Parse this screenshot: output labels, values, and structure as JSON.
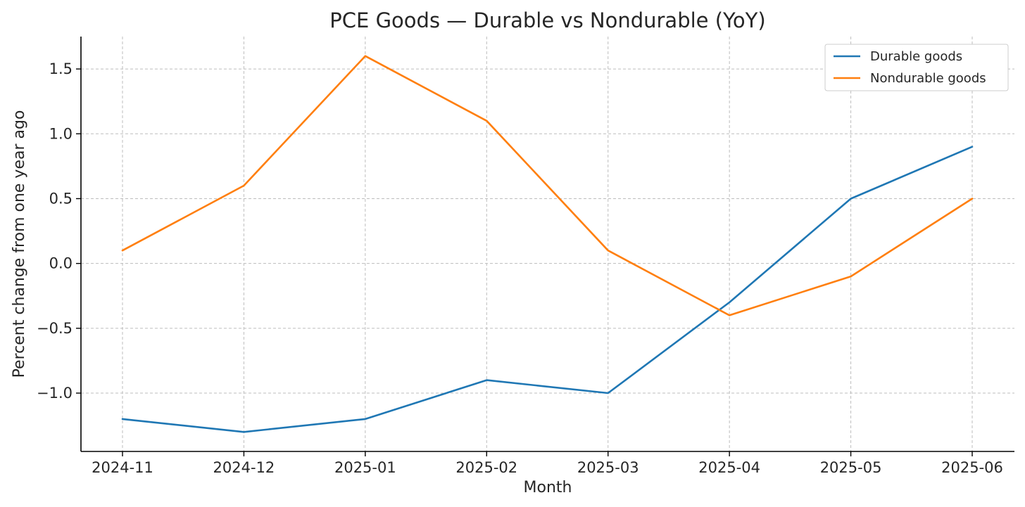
{
  "chart_data": {
    "type": "line",
    "title": "PCE Goods — Durable vs Nondurable (YoY)",
    "xlabel": "Month",
    "ylabel": "Percent change from one year ago",
    "categories": [
      "2024-11",
      "2024-12",
      "2025-01",
      "2025-02",
      "2025-03",
      "2025-04",
      "2025-05",
      "2025-06"
    ],
    "series": [
      {
        "name": "Durable goods",
        "color": "#1f77b4",
        "values": [
          -1.2,
          -1.3,
          -1.2,
          -0.9,
          -1.0,
          -0.3,
          0.5,
          0.9
        ]
      },
      {
        "name": "Nondurable goods",
        "color": "#ff7f0e",
        "values": [
          0.1,
          0.6,
          1.6,
          1.1,
          0.1,
          -0.4,
          -0.1,
          0.5
        ]
      }
    ],
    "yticks": [
      -1.0,
      -0.5,
      0.0,
      0.5,
      1.0,
      1.5
    ],
    "ytick_labels": [
      "−1.0",
      "−0.5",
      "0.0",
      "0.5",
      "1.0",
      "1.5"
    ],
    "ylim": [
      -1.45,
      1.75
    ],
    "grid": true,
    "legend_position": "top-right"
  }
}
